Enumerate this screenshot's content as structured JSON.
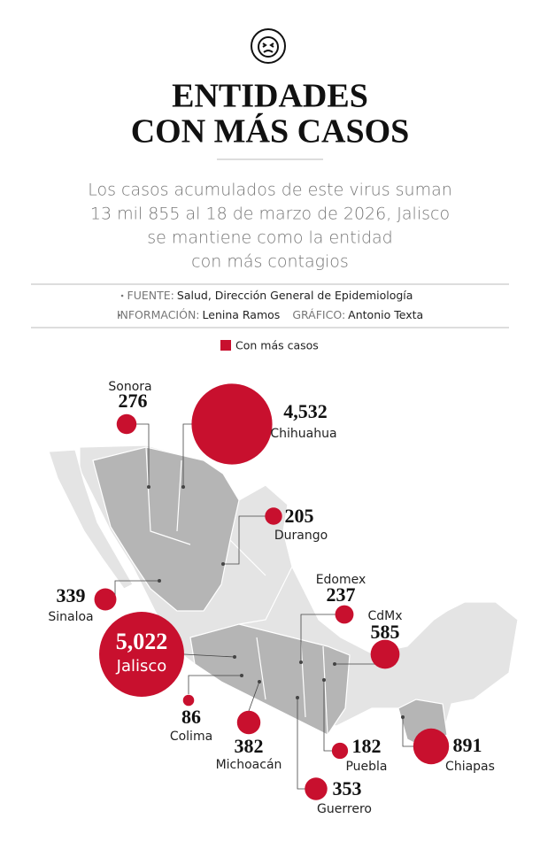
{
  "header": {
    "title_lines": [
      "ENTIDADES",
      "CON MÁS CASOS"
    ],
    "subtitle_lines": [
      "Los casos acumulados de este virus suman",
      "13 mil 855 al 18 de marzo de 2026, Jalisco",
      "se mantiene como la entidad",
      "con más contagios"
    ]
  },
  "credits": [
    [
      {
        "label": "FUENTE:",
        "text": "Salud, Dirección General de Epidemiología"
      }
    ],
    [
      {
        "label": "INFORMACIÓN:",
        "text": "Lenina Ramos"
      },
      {
        "label": "GRÁFICO:",
        "text": "Antonio Texta"
      }
    ]
  ],
  "legend": {
    "label": "Con más casos",
    "color": "#c8102e"
  },
  "states": [
    {
      "name": "Sonora",
      "value": 276
    },
    {
      "name": "Chihuahua",
      "value": 4532,
      "value_label": "4,532"
    },
    {
      "name": "Durango",
      "value": 205
    },
    {
      "name": "Edomex",
      "value": 237
    },
    {
      "name": "CdMx",
      "value": 585
    },
    {
      "name": "Sinaloa",
      "value": 339
    },
    {
      "name": "Jalisco",
      "value": 5022,
      "value_label": "5,022"
    },
    {
      "name": "Colima",
      "value": 86
    },
    {
      "name": "Michoacán",
      "value": 382
    },
    {
      "name": "Puebla",
      "value": 182
    },
    {
      "name": "Guerrero",
      "value": 353
    },
    {
      "name": "Chiapas",
      "value": 891
    }
  ]
}
